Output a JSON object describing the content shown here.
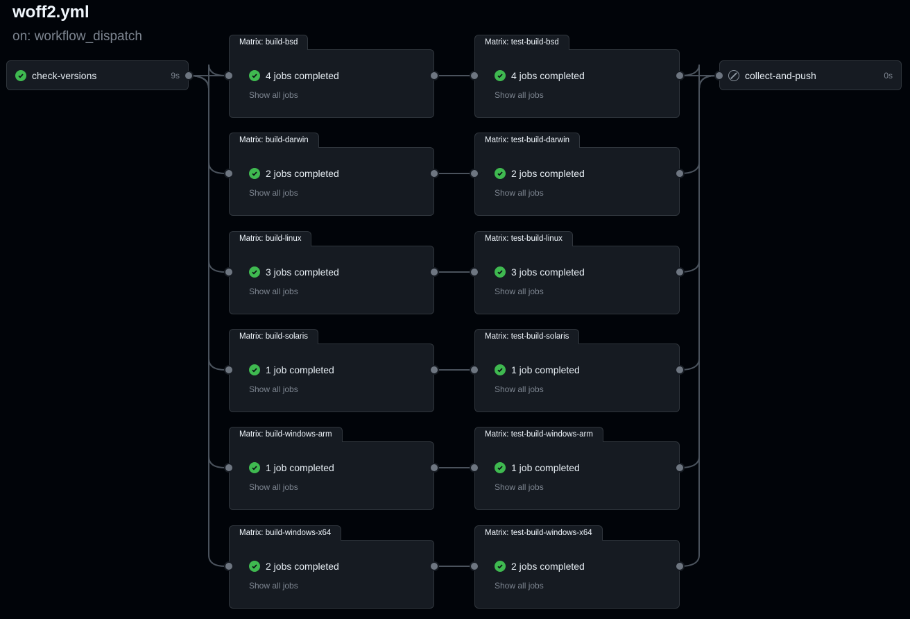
{
  "header": {
    "title": "woff2.yml",
    "trigger": "on: workflow_dispatch"
  },
  "start_job": {
    "name": "check-versions",
    "duration": "9s",
    "status": "success",
    "icon": "check-circle-icon"
  },
  "end_job": {
    "name": "collect-and-push",
    "duration": "0s",
    "status": "skipped",
    "icon": "skip-icon"
  },
  "show_all_label": "Show all jobs",
  "colors": {
    "success": "#3fb950",
    "background": "#010409",
    "card": "#161b22",
    "border": "#30363d"
  },
  "rows": [
    {
      "build": {
        "title": "Matrix: build-bsd",
        "status": "4 jobs completed"
      },
      "test": {
        "title": "Matrix: test-build-bsd",
        "status": "4 jobs completed"
      }
    },
    {
      "build": {
        "title": "Matrix: build-darwin",
        "status": "2 jobs completed"
      },
      "test": {
        "title": "Matrix: test-build-darwin",
        "status": "2 jobs completed"
      }
    },
    {
      "build": {
        "title": "Matrix: build-linux",
        "status": "3 jobs completed"
      },
      "test": {
        "title": "Matrix: test-build-linux",
        "status": "3 jobs completed"
      }
    },
    {
      "build": {
        "title": "Matrix: build-solaris",
        "status": "1 job completed"
      },
      "test": {
        "title": "Matrix: test-build-solaris",
        "status": "1 job completed"
      }
    },
    {
      "build": {
        "title": "Matrix: build-windows-arm",
        "status": "1 job completed"
      },
      "test": {
        "title": "Matrix: test-build-windows-arm",
        "status": "1 job completed"
      }
    },
    {
      "build": {
        "title": "Matrix: build-windows-x64",
        "status": "2 jobs completed"
      },
      "test": {
        "title": "Matrix: test-build-windows-x64",
        "status": "2 jobs completed"
      }
    }
  ]
}
